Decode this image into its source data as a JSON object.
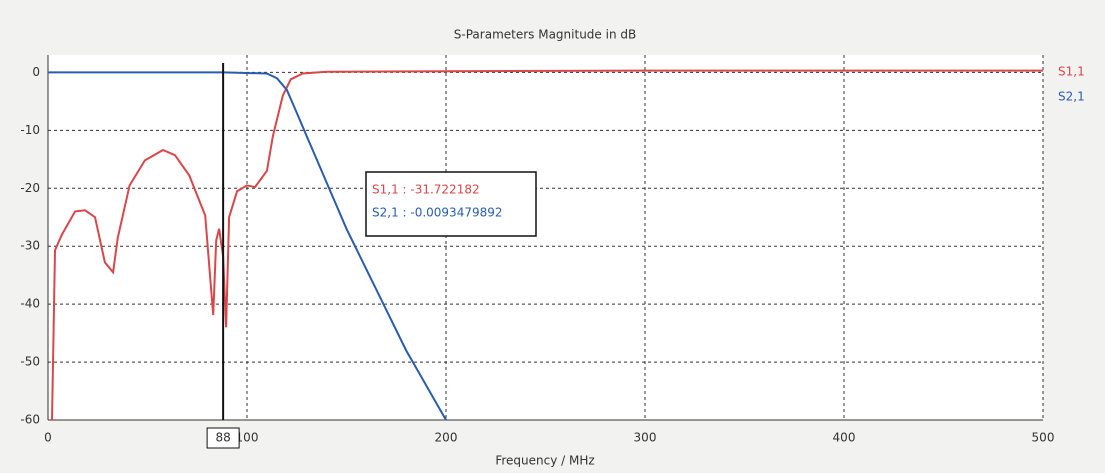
{
  "chart_data": {
    "type": "line",
    "title": "S-Parameters Magnitude in dB",
    "x_label": "Frequency / MHz",
    "xlim": [
      0,
      500
    ],
    "ylim": [
      -60,
      3
    ],
    "xticks": [
      0,
      100,
      200,
      300,
      400,
      500
    ],
    "yticks": [
      0,
      -10,
      -20,
      -30,
      -40,
      -50,
      -60
    ],
    "grid": true,
    "legend": "right",
    "series": [
      {
        "name": "S1,1",
        "color": "#d9474a",
        "x": [
          2,
          3.5,
          7,
          13.6,
          18.6,
          23.6,
          28.6,
          32.7,
          35,
          41,
          48.7,
          57.8,
          63.8,
          71,
          79,
          83,
          84.5,
          86,
          88,
          89.5,
          91,
          95,
          100,
          104,
          110,
          113,
          118,
          122,
          128,
          140,
          200,
          300,
          400,
          500
        ],
        "values": [
          -60,
          -30.7,
          -28,
          -24,
          -23.8,
          -25,
          -32.8,
          -34.5,
          -28.6,
          -19.5,
          -15.2,
          -13.4,
          -14.3,
          -17.8,
          -24.7,
          -41.9,
          -29,
          -27,
          -31.722182,
          -44,
          -25,
          -20.5,
          -19.5,
          -19.8,
          -17,
          -11,
          -4,
          -1.2,
          -0.2,
          0.1,
          0.2,
          0.3,
          0.3,
          0.3
        ]
      },
      {
        "name": "S2,1",
        "color": "#2a5cb0",
        "x": [
          0,
          50,
          88,
          110,
          115,
          120,
          125,
          130,
          140,
          150,
          160,
          170,
          180,
          190,
          200
        ],
        "values": [
          0,
          -0.01,
          -0.0093479892,
          -0.2,
          -1,
          -3,
          -7,
          -11,
          -19,
          -27,
          -34,
          -41,
          -48,
          -54,
          -60
        ]
      }
    ],
    "cursor_x": 88,
    "readouts": [
      {
        "value": -31.722182,
        "label": "S1,1 : -31.722182"
      },
      {
        "value": -0.0093479892,
        "label": "S2,1 : -0.0093479892"
      }
    ]
  }
}
